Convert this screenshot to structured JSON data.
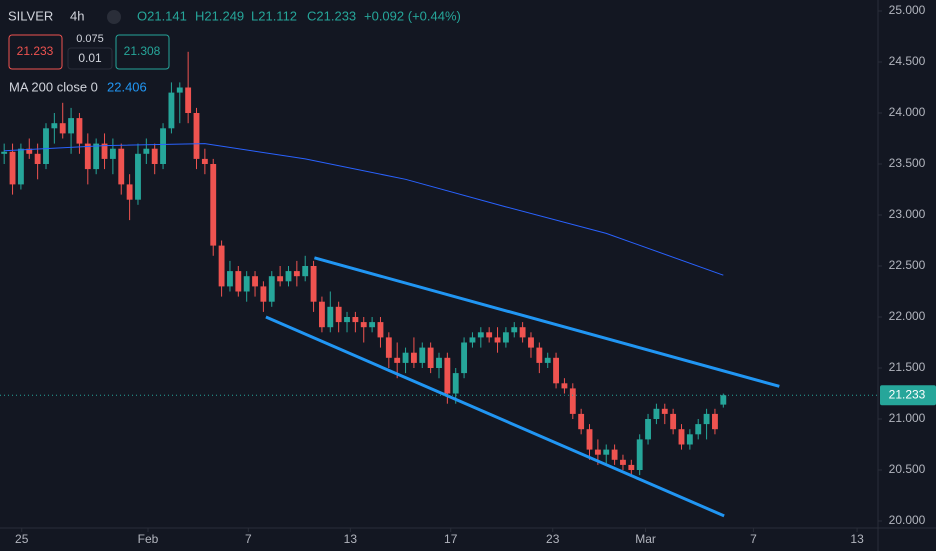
{
  "header": {
    "symbol": "SILVER",
    "interval": "4h",
    "o": "O21.141",
    "h": "H21.249",
    "l": "L21.112",
    "c": "C21.233",
    "change": "+0.092 (+0.44%)",
    "sell": "21.233",
    "spread": "0.075",
    "qty": "0.01",
    "buy": "21.308"
  },
  "chart_data": {
    "type": "candlestick",
    "up_color": "#26a69a",
    "down_color": "#ef5350",
    "xlim": [
      -0.5,
      104.5
    ],
    "ylim": [
      19.95,
      25.05
    ],
    "xticks": [
      {
        "value": 2.1,
        "label": "25"
      },
      {
        "value": 17.2,
        "label": "Feb"
      },
      {
        "value": 29.2,
        "label": "7"
      },
      {
        "value": 41.4,
        "label": "13"
      },
      {
        "value": 53.4,
        "label": "17"
      },
      {
        "value": 65.6,
        "label": "23"
      },
      {
        "value": 76.7,
        "label": "Mar"
      },
      {
        "value": 89.6,
        "label": "7"
      },
      {
        "value": 102.0,
        "label": "13"
      }
    ],
    "yticks": [
      {
        "value": 20,
        "label": "20.000"
      },
      {
        "value": 20.5,
        "label": "20.500"
      },
      {
        "value": 21,
        "label": "21.000"
      },
      {
        "value": 21.5,
        "label": "21.500"
      },
      {
        "value": 22,
        "label": "22.000"
      },
      {
        "value": 22.5,
        "label": "22.500"
      },
      {
        "value": 23,
        "label": "23.000"
      },
      {
        "value": 23.5,
        "label": "23.500"
      },
      {
        "value": 24,
        "label": "24.000"
      },
      {
        "value": 24.5,
        "label": "24.500"
      },
      {
        "value": 25,
        "label": "25.000"
      }
    ],
    "ohlc": [
      [
        23.6,
        23.7,
        23.5,
        23.62
      ],
      [
        23.62,
        23.7,
        23.2,
        23.3
      ],
      [
        23.3,
        23.7,
        23.25,
        23.65
      ],
      [
        23.65,
        23.75,
        23.55,
        23.6
      ],
      [
        23.6,
        23.7,
        23.35,
        23.5
      ],
      [
        23.5,
        23.9,
        23.45,
        23.85
      ],
      [
        23.85,
        24.0,
        23.7,
        23.9
      ],
      [
        23.9,
        24.1,
        23.75,
        23.8
      ],
      [
        23.8,
        24.05,
        23.6,
        23.95
      ],
      [
        23.95,
        24.0,
        23.6,
        23.7
      ],
      [
        23.7,
        23.8,
        23.3,
        23.45
      ],
      [
        23.45,
        23.75,
        23.4,
        23.7
      ],
      [
        23.7,
        23.8,
        23.45,
        23.55
      ],
      [
        23.55,
        23.75,
        23.4,
        23.65
      ],
      [
        23.65,
        23.7,
        23.2,
        23.3
      ],
      [
        23.3,
        23.4,
        22.95,
        23.15
      ],
      [
        23.15,
        23.7,
        23.1,
        23.6
      ],
      [
        23.6,
        23.75,
        23.5,
        23.65
      ],
      [
        23.65,
        23.7,
        23.4,
        23.5
      ],
      [
        23.5,
        23.9,
        23.45,
        23.85
      ],
      [
        23.85,
        24.3,
        23.8,
        24.2
      ],
      [
        24.2,
        24.3,
        23.9,
        24.25
      ],
      [
        24.25,
        24.6,
        23.9,
        24.0
      ],
      [
        24.0,
        24.05,
        23.45,
        23.55
      ],
      [
        23.55,
        23.65,
        23.4,
        23.5
      ],
      [
        23.5,
        23.55,
        22.6,
        22.7
      ],
      [
        22.7,
        22.75,
        22.2,
        22.3
      ],
      [
        22.3,
        22.55,
        22.25,
        22.45
      ],
      [
        22.45,
        22.5,
        22.2,
        22.25
      ],
      [
        22.25,
        22.45,
        22.15,
        22.4
      ],
      [
        22.4,
        22.45,
        22.2,
        22.3
      ],
      [
        22.3,
        22.35,
        22.05,
        22.15
      ],
      [
        22.15,
        22.45,
        22.1,
        22.4
      ],
      [
        22.4,
        22.5,
        22.3,
        22.35
      ],
      [
        22.35,
        22.5,
        22.3,
        22.45
      ],
      [
        22.45,
        22.55,
        22.3,
        22.4
      ],
      [
        22.4,
        22.6,
        22.35,
        22.5
      ],
      [
        22.5,
        22.55,
        22.05,
        22.15
      ],
      [
        22.15,
        22.2,
        21.85,
        21.9
      ],
      [
        21.9,
        22.25,
        21.85,
        22.1
      ],
      [
        22.1,
        22.15,
        21.85,
        21.95
      ],
      [
        21.95,
        22.05,
        21.85,
        22.0
      ],
      [
        22.0,
        22.05,
        21.85,
        21.95
      ],
      [
        21.95,
        22.0,
        21.75,
        21.9
      ],
      [
        21.9,
        22.0,
        21.85,
        21.95
      ],
      [
        21.95,
        22.0,
        21.7,
        21.8
      ],
      [
        21.8,
        21.85,
        21.5,
        21.6
      ],
      [
        21.6,
        21.75,
        21.4,
        21.55
      ],
      [
        21.55,
        21.7,
        21.45,
        21.65
      ],
      [
        21.65,
        21.8,
        21.5,
        21.55
      ],
      [
        21.55,
        21.75,
        21.5,
        21.7
      ],
      [
        21.7,
        21.75,
        21.45,
        21.5
      ],
      [
        21.5,
        21.65,
        21.4,
        21.6
      ],
      [
        21.6,
        21.65,
        21.15,
        21.25
      ],
      [
        21.25,
        21.5,
        21.15,
        21.45
      ],
      [
        21.45,
        21.8,
        21.4,
        21.75
      ],
      [
        21.75,
        21.85,
        21.7,
        21.8
      ],
      [
        21.8,
        21.9,
        21.7,
        21.85
      ],
      [
        21.85,
        21.9,
        21.75,
        21.8
      ],
      [
        21.8,
        21.9,
        21.65,
        21.75
      ],
      [
        21.75,
        21.9,
        21.7,
        21.85
      ],
      [
        21.85,
        21.95,
        21.8,
        21.9
      ],
      [
        21.9,
        21.95,
        21.75,
        21.8
      ],
      [
        21.8,
        21.85,
        21.6,
        21.7
      ],
      [
        21.7,
        21.75,
        21.45,
        21.55
      ],
      [
        21.55,
        21.65,
        21.5,
        21.6
      ],
      [
        21.6,
        21.65,
        21.3,
        21.35
      ],
      [
        21.35,
        21.4,
        21.25,
        21.3
      ],
      [
        21.3,
        21.35,
        21.0,
        21.05
      ],
      [
        21.05,
        21.1,
        20.85,
        20.9
      ],
      [
        20.9,
        20.95,
        20.6,
        20.7
      ],
      [
        20.7,
        20.8,
        20.55,
        20.65
      ],
      [
        20.65,
        20.75,
        20.55,
        20.7
      ],
      [
        20.7,
        20.75,
        20.55,
        20.6
      ],
      [
        20.6,
        20.65,
        20.5,
        20.55
      ],
      [
        20.55,
        20.6,
        20.45,
        20.5
      ],
      [
        20.5,
        20.85,
        20.45,
        20.8
      ],
      [
        20.8,
        21.05,
        20.75,
        21.0
      ],
      [
        21.0,
        21.15,
        20.95,
        21.1
      ],
      [
        21.1,
        21.15,
        20.95,
        21.05
      ],
      [
        21.05,
        21.1,
        20.85,
        20.9
      ],
      [
        20.9,
        20.95,
        20.7,
        20.75
      ],
      [
        20.75,
        20.9,
        20.7,
        20.85
      ],
      [
        20.85,
        21.0,
        20.8,
        20.95
      ],
      [
        20.95,
        21.1,
        20.8,
        21.05
      ],
      [
        21.05,
        21.1,
        20.85,
        20.9
      ],
      [
        21.141,
        21.249,
        21.112,
        21.233
      ]
    ],
    "ma": {
      "name": "MA 200 close 0",
      "color": "#2962ff",
      "last": 22.406,
      "x": [
        0,
        12,
        24,
        36,
        48,
        60,
        72,
        86
      ],
      "values": [
        23.63,
        23.68,
        23.7,
        23.55,
        23.35,
        23.08,
        22.82,
        22.41
      ]
    },
    "trendlines": [
      {
        "color": "#2196f3",
        "x": [
          37.1,
          92.7
        ],
        "values": [
          22.58,
          21.32
        ]
      },
      {
        "color": "#2196f3",
        "x": [
          31.3,
          86.1
        ],
        "values": [
          22.0,
          20.05
        ]
      }
    ],
    "last_price": 21.233
  }
}
